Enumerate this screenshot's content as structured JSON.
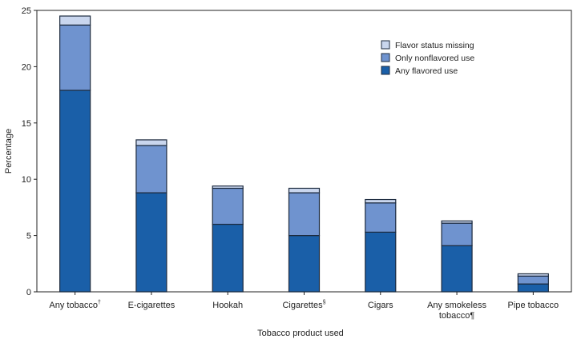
{
  "chart_data": {
    "type": "bar",
    "stacked": true,
    "xlabel": "Tobacco product used",
    "ylabel": "Percentage",
    "ylim": [
      0,
      25
    ],
    "yticks": [
      0,
      5,
      10,
      15,
      20,
      25
    ],
    "grid": false,
    "legend_position": "top-right",
    "categories": [
      {
        "line1": "Any tobacco",
        "sup": "†",
        "line2": ""
      },
      {
        "line1": "E-cigarettes",
        "sup": "",
        "line2": ""
      },
      {
        "line1": "Hookah",
        "sup": "",
        "line2": ""
      },
      {
        "line1": "Cigarettes",
        "sup": "§",
        "line2": ""
      },
      {
        "line1": "Cigars",
        "sup": "",
        "line2": ""
      },
      {
        "line1": "Any smokeless",
        "sup": "",
        "line2": "tobacco¶"
      },
      {
        "line1": "Pipe tobacco",
        "sup": "",
        "line2": ""
      }
    ],
    "series": [
      {
        "name": "Any flavored use",
        "color": "#1a5fa8",
        "values": [
          17.9,
          8.8,
          6.0,
          5.0,
          5.3,
          4.1,
          0.7
        ]
      },
      {
        "name": "Only nonflavored use",
        "color": "#6f93cf",
        "values": [
          5.8,
          4.2,
          3.2,
          3.8,
          2.6,
          2.0,
          0.7
        ]
      },
      {
        "name": "Flavor status missing",
        "color": "#c9d6ee",
        "values": [
          0.8,
          0.5,
          0.2,
          0.4,
          0.3,
          0.2,
          0.2
        ]
      }
    ],
    "legend_order": [
      "Flavor status missing",
      "Only nonflavored use",
      "Any flavored use"
    ]
  }
}
